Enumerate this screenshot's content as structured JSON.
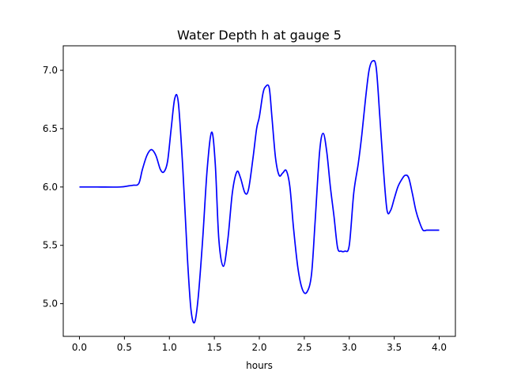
{
  "chart_data": {
    "type": "line",
    "title": "Water Depth h at gauge 5",
    "xlabel": "hours",
    "ylabel": "",
    "xlim": [
      -0.18,
      4.18
    ],
    "ylim": [
      4.72,
      7.21
    ],
    "xticks": [
      0.0,
      0.5,
      1.0,
      1.5,
      2.0,
      2.5,
      3.0,
      3.5,
      4.0
    ],
    "xtick_labels": [
      "0.0",
      "0.5",
      "1.0",
      "1.5",
      "2.0",
      "2.5",
      "3.0",
      "3.5",
      "4.0"
    ],
    "yticks": [
      5.0,
      5.5,
      6.0,
      6.5,
      7.0
    ],
    "ytick_labels": [
      "5.0",
      "5.5",
      "6.0",
      "6.5",
      "7.0"
    ],
    "grid": false,
    "series": [
      {
        "color": "#0000ff",
        "x": [
          0.0,
          0.2,
          0.45,
          0.55,
          0.6,
          0.66,
          0.7,
          0.75,
          0.8,
          0.85,
          0.9,
          0.94,
          0.98,
          1.02,
          1.06,
          1.1,
          1.15,
          1.2,
          1.24,
          1.28,
          1.32,
          1.37,
          1.42,
          1.47,
          1.51,
          1.55,
          1.6,
          1.65,
          1.7,
          1.75,
          1.79,
          1.84,
          1.88,
          1.93,
          1.97,
          2.0,
          2.04,
          2.07,
          2.11,
          2.14,
          2.18,
          2.22,
          2.26,
          2.3,
          2.34,
          2.38,
          2.43,
          2.48,
          2.53,
          2.58,
          2.62,
          2.67,
          2.71,
          2.75,
          2.79,
          2.83,
          2.87,
          2.91,
          2.95,
          3.0,
          3.05,
          3.1,
          3.14,
          3.18,
          3.22,
          3.26,
          3.3,
          3.34,
          3.38,
          3.42,
          3.46,
          3.5,
          3.54,
          3.58,
          3.62,
          3.66,
          3.7,
          3.74,
          3.78,
          3.82,
          3.86,
          3.9,
          3.94,
          4.0
        ],
        "y": [
          6.0,
          6.0,
          6.0,
          6.01,
          6.015,
          6.03,
          6.15,
          6.27,
          6.32,
          6.27,
          6.15,
          6.13,
          6.22,
          6.5,
          6.76,
          6.72,
          6.15,
          5.4,
          4.95,
          4.84,
          5.05,
          5.55,
          6.15,
          6.47,
          6.2,
          5.55,
          5.32,
          5.55,
          5.95,
          6.13,
          6.08,
          5.95,
          5.98,
          6.25,
          6.5,
          6.6,
          6.8,
          6.86,
          6.85,
          6.6,
          6.25,
          6.1,
          6.12,
          6.14,
          6.0,
          5.65,
          5.3,
          5.12,
          5.1,
          5.25,
          5.7,
          6.3,
          6.46,
          6.3,
          6.0,
          5.75,
          5.48,
          5.45,
          5.45,
          5.5,
          5.95,
          6.2,
          6.45,
          6.75,
          7.0,
          7.08,
          7.02,
          6.6,
          6.15,
          5.8,
          5.8,
          5.9,
          6.0,
          6.06,
          6.1,
          6.08,
          5.95,
          5.8,
          5.7,
          5.63,
          5.63,
          5.63,
          5.63,
          5.63
        ]
      }
    ]
  }
}
